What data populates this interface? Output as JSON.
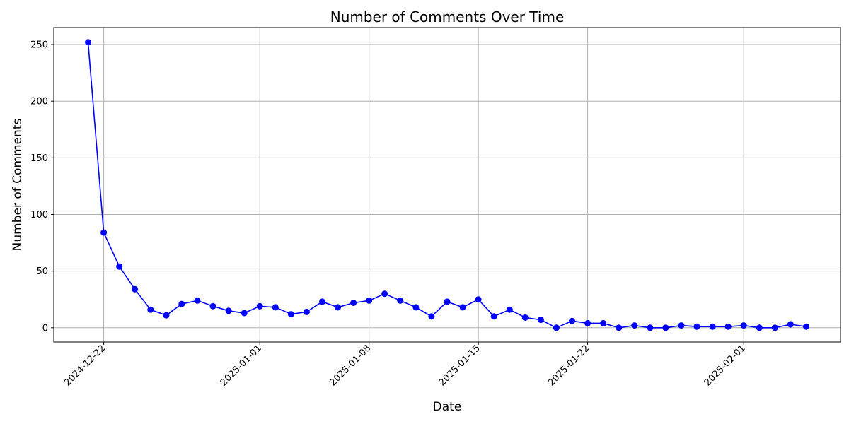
{
  "chart_data": {
    "type": "line",
    "title": "Number of Comments Over Time",
    "xlabel": "Date",
    "ylabel": "Number of Comments",
    "x_start": "2024-12-21",
    "x": [
      "2024-12-21",
      "2024-12-22",
      "2024-12-23",
      "2024-12-24",
      "2024-12-25",
      "2024-12-26",
      "2024-12-27",
      "2024-12-28",
      "2024-12-29",
      "2024-12-30",
      "2024-12-31",
      "2025-01-01",
      "2025-01-02",
      "2025-01-03",
      "2025-01-04",
      "2025-01-05",
      "2025-01-06",
      "2025-01-07",
      "2025-01-08",
      "2025-01-09",
      "2025-01-10",
      "2025-01-11",
      "2025-01-12",
      "2025-01-13",
      "2025-01-14",
      "2025-01-15",
      "2025-01-16",
      "2025-01-17",
      "2025-01-18",
      "2025-01-19",
      "2025-01-20",
      "2025-01-21",
      "2025-01-22",
      "2025-01-23",
      "2025-01-24",
      "2025-01-25",
      "2025-01-26",
      "2025-01-27",
      "2025-01-28",
      "2025-01-29",
      "2025-01-30",
      "2025-01-31",
      "2025-02-01",
      "2025-02-02",
      "2025-02-03",
      "2025-02-04",
      "2025-02-05"
    ],
    "series": [
      {
        "color": "#0000ff",
        "marker": "circle",
        "values": [
          252,
          84,
          54,
          34,
          16,
          11,
          21,
          24,
          19,
          15,
          13,
          19,
          18,
          12,
          14,
          23,
          18,
          22,
          24,
          30,
          24,
          18,
          10,
          23,
          18,
          25,
          10,
          16,
          9,
          7,
          0,
          6,
          4,
          4,
          0,
          2,
          0,
          0,
          2,
          1,
          1,
          1,
          2,
          0,
          0,
          3,
          1
        ]
      }
    ],
    "x_ticks": [
      "2024-12-22",
      "2025-01-01",
      "2025-01-08",
      "2025-01-15",
      "2025-01-22",
      "2025-02-01"
    ],
    "y_ticks": [
      0,
      50,
      100,
      150,
      200,
      250
    ],
    "ylim": [
      -12.6,
      265
    ],
    "xlim": [
      "2024-12-18.8",
      "2025-02-07.2"
    ],
    "grid": true,
    "tick_label_rotation": 45
  }
}
